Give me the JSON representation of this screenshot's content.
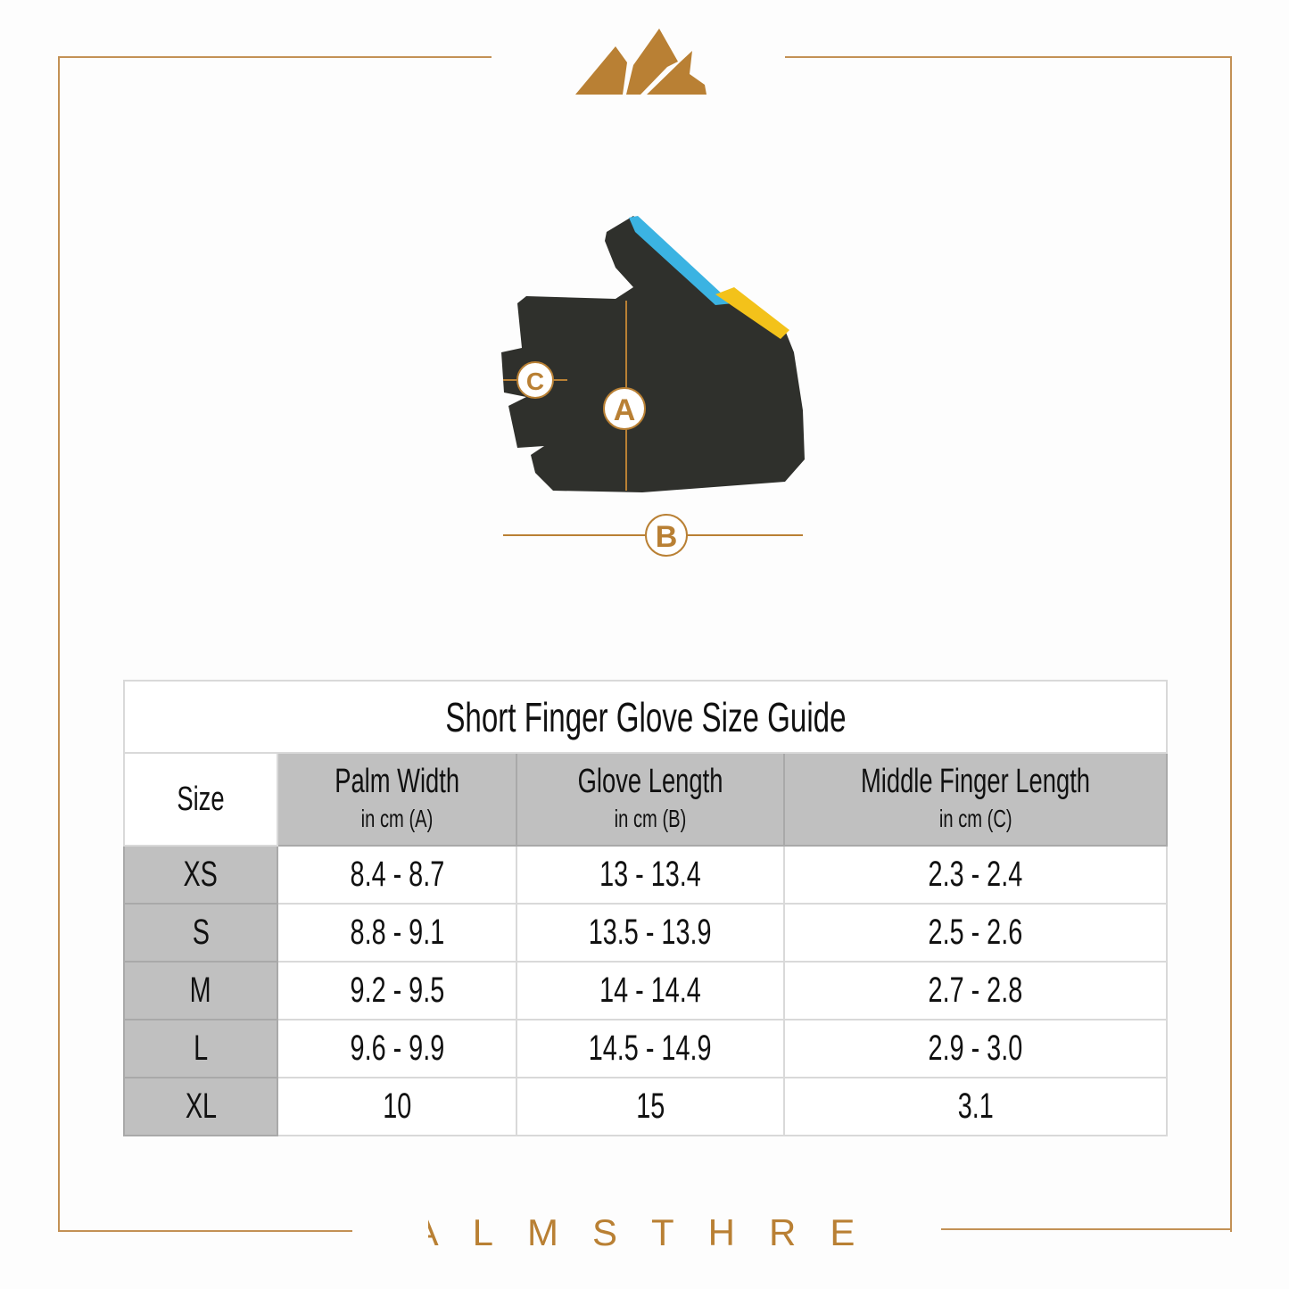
{
  "brand": {
    "name": "ALMSTHRE",
    "color": "#b98034",
    "logo": "mountain-logo"
  },
  "diagram": {
    "labels": [
      "A",
      "B",
      "C"
    ]
  },
  "table": {
    "title": "Short Finger Glove Size Guide",
    "headers": [
      {
        "main": "Size",
        "sub": ""
      },
      {
        "main": "Palm Width",
        "sub": "in cm (A)"
      },
      {
        "main": "Glove Length",
        "sub": "in cm (B)"
      },
      {
        "main": "Middle Finger Length",
        "sub": "in cm (C)"
      }
    ],
    "rows": [
      [
        "XS",
        "8.4 - 8.7",
        "13 - 13.4",
        "2.3 - 2.4"
      ],
      [
        "S",
        "8.8 - 9.1",
        "13.5 - 13.9",
        "2.5 - 2.6"
      ],
      [
        "M",
        "9.2 - 9.5",
        "14 - 14.4",
        "2.7 - 2.8"
      ],
      [
        "L",
        "9.6 - 9.9",
        "14.5 - 14.9",
        "2.9 - 3.0"
      ],
      [
        "XL",
        "10",
        "15",
        "3.1"
      ]
    ]
  }
}
